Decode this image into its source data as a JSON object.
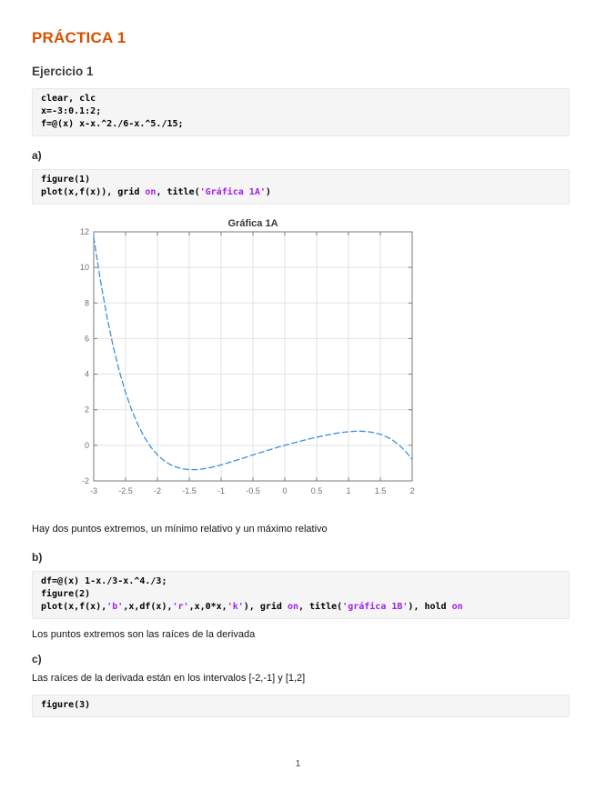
{
  "page": {
    "title": "PRÁCTICA 1",
    "section_title": "Ejercicio 1",
    "page_number": "1"
  },
  "headings": {
    "a": "a)",
    "b": "b)",
    "c": "c)"
  },
  "paragraphs": {
    "after_fig1": "Hay dos puntos extremos, un mínimo relativo y un máximo relativo",
    "after_code_b": "Los puntos extremos son las raíces de la derivada",
    "after_c": "Las raíces de la derivada están en los intervalos [-2,-1] y [1,2]"
  },
  "code_blocks": {
    "setup": [
      [
        {
          "t": "clear, clc",
          "s": "plain"
        }
      ],
      [
        {
          "t": "x=-3:0.1:2;",
          "s": "plain"
        }
      ],
      [
        {
          "t": "f=@(x) x-x.^2./6-x.^5./15;",
          "s": "plain"
        }
      ]
    ],
    "block_a": [
      [
        {
          "t": "figure(1)",
          "s": "plain"
        }
      ],
      [
        {
          "t": "plot(x,f(x)), grid ",
          "s": "plain"
        },
        {
          "t": "on",
          "s": "string"
        },
        {
          "t": ", title(",
          "s": "plain"
        },
        {
          "t": "'Gráfica 1A'",
          "s": "string"
        },
        {
          "t": ")",
          "s": "plain"
        }
      ]
    ],
    "block_b": [
      [
        {
          "t": "df=@(x) 1-x./3-x.^4./3;",
          "s": "plain"
        }
      ],
      [
        {
          "t": "figure(2)",
          "s": "plain"
        }
      ],
      [
        {
          "t": "plot(x,f(x),",
          "s": "plain"
        },
        {
          "t": "'b'",
          "s": "string"
        },
        {
          "t": ",x,df(x),",
          "s": "plain"
        },
        {
          "t": "'r'",
          "s": "string"
        },
        {
          "t": ",x,0*x,",
          "s": "plain"
        },
        {
          "t": "'k'",
          "s": "string"
        },
        {
          "t": "), grid ",
          "s": "plain"
        },
        {
          "t": "on",
          "s": "string"
        },
        {
          "t": ", title(",
          "s": "plain"
        },
        {
          "t": "'gráfica 1B'",
          "s": "string"
        },
        {
          "t": "), hold ",
          "s": "plain"
        },
        {
          "t": "on",
          "s": "string"
        }
      ]
    ],
    "block_c": [
      [
        {
          "t": "figure(3)",
          "s": "plain"
        }
      ]
    ]
  },
  "colors": {
    "heading_orange": "#d55000",
    "code_string_purple": "#a020f0",
    "code_background": "#f5f5f5",
    "curve_blue": "#3f90d8",
    "grid_gray": "#e2e2e2",
    "axis_gray": "#7a7a7a"
  },
  "chart_data": {
    "type": "line",
    "title": "Gráfica 1A",
    "xlabel": "",
    "ylabel": "",
    "xlim": [
      -3,
      2
    ],
    "ylim": [
      -2,
      12
    ],
    "xticks": [
      -3,
      -2.5,
      -2,
      -1.5,
      -1,
      -0.5,
      0,
      0.5,
      1,
      1.5,
      2
    ],
    "yticks": [
      -2,
      0,
      2,
      4,
      6,
      8,
      10,
      12
    ],
    "grid": true,
    "legend": null,
    "line_style": "dashed",
    "line_color": "#3f90d8",
    "series": [
      {
        "name": "f(x) = x - x.^2./6 - x.^5./15",
        "x": [
          -3,
          -2.9,
          -2.8,
          -2.7,
          -2.6,
          -2.5,
          -2.4,
          -2.3,
          -2.2,
          -2.1,
          -2,
          -1.9,
          -1.8,
          -1.7,
          -1.6,
          -1.5,
          -1.4,
          -1.3,
          -1.2,
          -1.1,
          -1,
          -0.9,
          -0.8,
          -0.7,
          -0.6,
          -0.5,
          -0.4,
          -0.3,
          -0.2,
          -0.1,
          0,
          0.1,
          0.2,
          0.3,
          0.4,
          0.5,
          0.6,
          0.7,
          0.8,
          0.9,
          1,
          1.1,
          1.2,
          1.3,
          1.4,
          1.5,
          1.6,
          1.7,
          1.8,
          1.9,
          2
        ],
        "y": [
          11.7,
          9.3724,
          7.3669,
          5.6509,
          4.1943,
          2.9688,
          1.9484,
          1.1092,
          0.4291,
          -0.1123,
          -0.5333,
          -0.8509,
          -1.0803,
          -1.2351,
          -1.3276,
          -1.3688,
          -1.3681,
          -1.3341,
          -1.2741,
          -1.1943,
          -1.1,
          -0.9956,
          -0.8848,
          -0.7705,
          -0.6548,
          -0.5396,
          -0.426,
          -0.3148,
          -0.2066,
          -0.1017,
          0,
          0.0983,
          0.1933,
          0.2848,
          0.3726,
          0.4563,
          0.5348,
          0.6071,
          0.6715,
          0.7256,
          0.7667,
          0.791,
          0.7941,
          0.7708,
          0.7148,
          0.6188,
          0.4743,
          0.2718,
          0.0003,
          -0.3524,
          -0.8
        ]
      }
    ]
  }
}
